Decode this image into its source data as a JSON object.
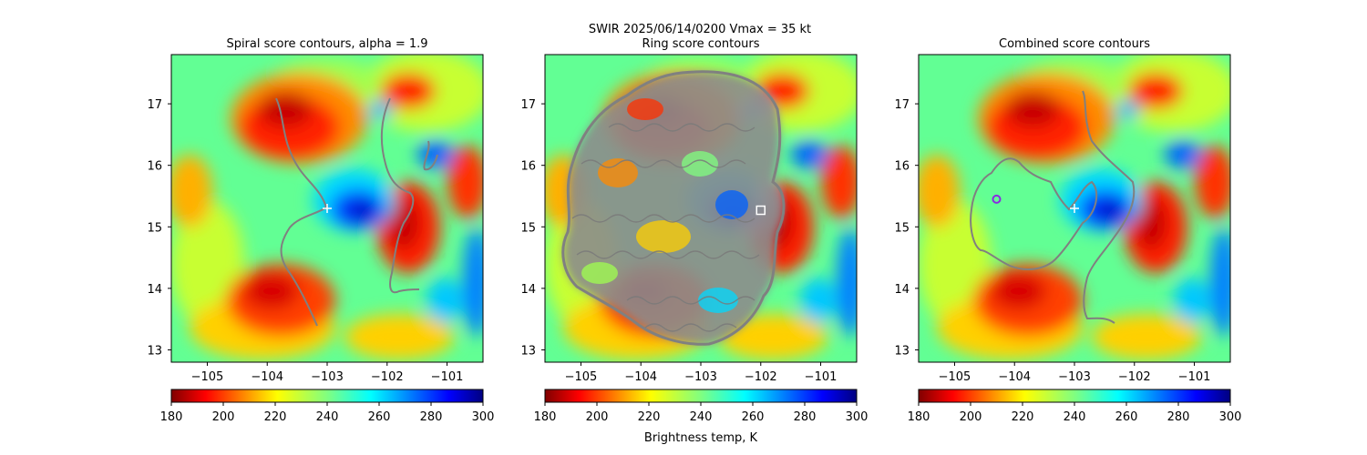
{
  "figure": {
    "suptitle_line1": "SWIR  2025/06/14/0200    Vmax = 35 kt",
    "colorbar_label": "Brightness temp, K",
    "colormap": "jet_r"
  },
  "chart_data": [
    {
      "type": "heatmap",
      "title": "Spiral score contours, alpha =  1.9",
      "xlim": [
        -105.6,
        -100.4
      ],
      "ylim": [
        12.8,
        17.8
      ],
      "xticks": [
        -105,
        -104,
        -103,
        -102,
        -101
      ],
      "yticks": [
        13,
        14,
        15,
        16,
        17
      ],
      "xtick_labels": [
        "−105",
        "−104",
        "−103",
        "−102",
        "−101"
      ],
      "ytick_labels": [
        "13",
        "14",
        "15",
        "16",
        "17"
      ],
      "colorbar": {
        "range": [
          180,
          300
        ],
        "ticks": [
          "180",
          "200",
          "220",
          "240",
          "260",
          "280",
          "300"
        ]
      },
      "center_marker": {
        "lon": -103.0,
        "lat": 15.3,
        "shape": "plus",
        "color": "#ffffff"
      },
      "contour_color": "#808080"
    },
    {
      "type": "heatmap",
      "title": "Ring score contours",
      "xlim": [
        -105.6,
        -100.4
      ],
      "ylim": [
        12.8,
        17.8
      ],
      "xticks": [
        -105,
        -104,
        -103,
        -102,
        -101
      ],
      "yticks": [
        13,
        14,
        15,
        16,
        17
      ],
      "xtick_labels": [
        "−105",
        "−104",
        "−103",
        "−102",
        "−101"
      ],
      "ytick_labels": [
        "13",
        "14",
        "15",
        "16",
        "17"
      ],
      "colorbar": {
        "range": [
          180,
          300
        ],
        "ticks": [
          "180",
          "200",
          "220",
          "240",
          "260",
          "280",
          "300"
        ]
      },
      "center_marker": {
        "lon": -102.0,
        "lat": 15.27,
        "shape": "square",
        "color": "#ffffff"
      },
      "contour_color": "#808080"
    },
    {
      "type": "heatmap",
      "title": "Combined score contours",
      "xlim": [
        -105.6,
        -100.4
      ],
      "ylim": [
        12.8,
        17.8
      ],
      "xticks": [
        -105,
        -104,
        -103,
        -102,
        -101
      ],
      "yticks": [
        13,
        14,
        15,
        16,
        17
      ],
      "xtick_labels": [
        "−105",
        "−104",
        "−103",
        "−102",
        "−101"
      ],
      "ytick_labels": [
        "13",
        "14",
        "15",
        "16",
        "17"
      ],
      "colorbar": {
        "range": [
          180,
          300
        ],
        "ticks": [
          "180",
          "200",
          "220",
          "240",
          "260",
          "280",
          "300"
        ]
      },
      "center_marker": {
        "lon": -103.0,
        "lat": 15.3,
        "shape": "plus",
        "color": "#ffffff"
      },
      "secondary_marker": {
        "lon": -104.3,
        "lat": 15.45,
        "shape": "circle",
        "color": "#8a2be2"
      },
      "contour_color": "#808080"
    }
  ]
}
